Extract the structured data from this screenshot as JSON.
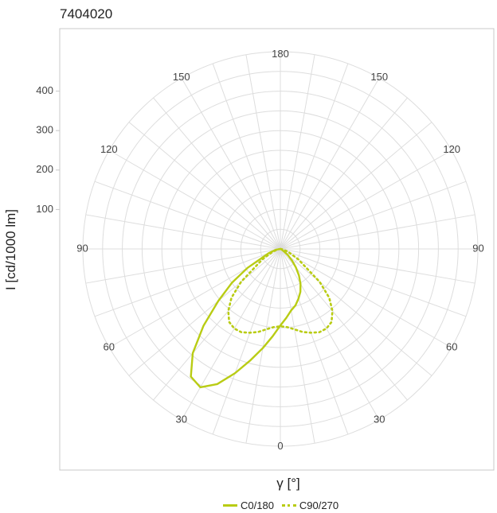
{
  "chart_data": {
    "type": "polar",
    "title": "7404020",
    "ylabel": "I [cd/1000 lm]",
    "xlabel": "γ [°]",
    "radial_ticks": [
      100,
      200,
      300,
      400
    ],
    "radial_max": 500,
    "angle_ticks": [
      {
        "label": "180",
        "angle": 180
      },
      {
        "label": "150",
        "angle": 150
      },
      {
        "label": "150",
        "angle": -150
      },
      {
        "label": "120",
        "angle": 120
      },
      {
        "label": "120",
        "angle": -120
      },
      {
        "label": "90",
        "angle": 90
      },
      {
        "label": "90",
        "angle": -90
      },
      {
        "label": "60",
        "angle": 60
      },
      {
        "label": "60",
        "angle": -60
      },
      {
        "label": "30",
        "angle": 30
      },
      {
        "label": "30",
        "angle": -30
      },
      {
        "label": "0",
        "angle": 0
      }
    ],
    "grid": true,
    "legend": "bottom",
    "series": [
      {
        "name": "C0/180",
        "style": "solid",
        "color": "#b9cc14",
        "angles": [
          -180,
          -90,
          -80,
          -70,
          -60,
          -55,
          -50,
          -45,
          -40,
          -35,
          -30,
          -25,
          -20,
          -15,
          -10,
          -5,
          0,
          5,
          10,
          15,
          20,
          25,
          30,
          35,
          40,
          45,
          50,
          55,
          60,
          65,
          70,
          75,
          80,
          85,
          90,
          180
        ],
        "intensities": [
          0,
          0,
          12,
          32,
          96,
          150,
          205,
          275,
          345,
          395,
          405,
          378,
          335,
          292,
          255,
          222,
          194,
          175,
          158,
          148,
          134,
          120,
          102,
          82,
          61,
          42,
          26,
          12,
          5,
          3,
          2,
          1,
          0,
          0,
          0,
          0
        ]
      },
      {
        "name": "C90/270",
        "style": "dotted",
        "color": "#b9cc14",
        "angles": [
          -90,
          -80,
          -70,
          -60,
          -50,
          -45,
          -40,
          -35,
          -30,
          -25,
          -20,
          -15,
          -10,
          -5,
          0,
          5,
          10,
          15,
          20,
          25,
          30,
          35,
          40,
          45,
          50,
          60,
          70,
          80,
          90
        ],
        "intensities": [
          0,
          6,
          21,
          52,
          130,
          175,
          205,
          226,
          233,
          233,
          226,
          218,
          207,
          199,
          196,
          199,
          207,
          218,
          226,
          233,
          233,
          226,
          205,
          175,
          130,
          52,
          21,
          6,
          0
        ]
      }
    ]
  }
}
